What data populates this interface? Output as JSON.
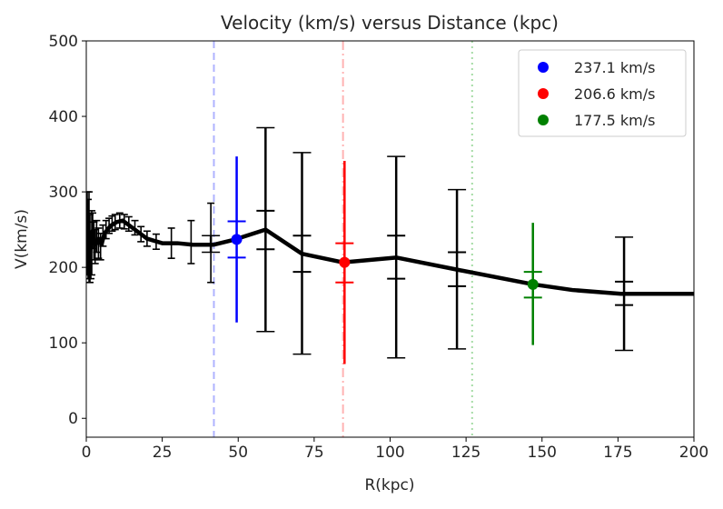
{
  "chart_data": {
    "type": "line",
    "title": "Velocity (km/s) versus Distance (kpc)",
    "xlabel": "R(kpc)",
    "ylabel": "V(km/s)",
    "xlim": [
      0,
      200
    ],
    "ylim": [
      -25,
      500
    ],
    "xticks": [
      0,
      25,
      50,
      75,
      100,
      125,
      150,
      175,
      200
    ],
    "yticks": [
      0,
      100,
      200,
      300,
      400,
      500
    ],
    "grid": false,
    "legend_position": "top-right",
    "rotation_curve": {
      "color": "#000000",
      "x": [
        1,
        2,
        3,
        4,
        5,
        6,
        8,
        10,
        12,
        15,
        20,
        25,
        30,
        35,
        42,
        49,
        59,
        71,
        84.5,
        102,
        122,
        147,
        160,
        176,
        200
      ],
      "y": [
        210,
        248,
        230,
        238,
        230,
        245,
        255,
        260,
        262,
        253,
        238,
        232,
        232,
        230,
        230,
        237,
        250,
        218,
        206.6,
        213,
        197,
        177.5,
        170,
        165,
        165
      ]
    },
    "small_error_bars": {
      "color": "#000000",
      "points": [
        {
          "x": 0.3,
          "y": 240,
          "lo": 190,
          "hi": 300
        },
        {
          "x": 0.6,
          "y": 230,
          "lo": 185,
          "hi": 290
        },
        {
          "x": 0.9,
          "y": 225,
          "lo": 180,
          "hi": 300
        },
        {
          "x": 1.2,
          "y": 210,
          "lo": 180,
          "hi": 270
        },
        {
          "x": 1.5,
          "y": 215,
          "lo": 185,
          "hi": 245
        },
        {
          "x": 1.8,
          "y": 225,
          "lo": 190,
          "hi": 275
        },
        {
          "x": 2.1,
          "y": 248,
          "lo": 225,
          "hi": 272
        },
        {
          "x": 2.5,
          "y": 235,
          "lo": 210,
          "hi": 260
        },
        {
          "x": 2.9,
          "y": 228,
          "lo": 205,
          "hi": 250
        },
        {
          "x": 3.4,
          "y": 240,
          "lo": 220,
          "hi": 262
        },
        {
          "x": 4.0,
          "y": 232,
          "lo": 212,
          "hi": 252
        },
        {
          "x": 4.7,
          "y": 228,
          "lo": 210,
          "hi": 245
        },
        {
          "x": 5.5,
          "y": 242,
          "lo": 228,
          "hi": 256
        },
        {
          "x": 6.5,
          "y": 250,
          "lo": 238,
          "hi": 262
        },
        {
          "x": 7.5,
          "y": 255,
          "lo": 245,
          "hi": 265
        },
        {
          "x": 8.5,
          "y": 258,
          "lo": 248,
          "hi": 268
        },
        {
          "x": 9.5,
          "y": 260,
          "lo": 250,
          "hi": 270
        },
        {
          "x": 11,
          "y": 262,
          "lo": 252,
          "hi": 272
        },
        {
          "x": 12.5,
          "y": 261,
          "lo": 251,
          "hi": 270
        },
        {
          "x": 14,
          "y": 258,
          "lo": 248,
          "hi": 267
        },
        {
          "x": 16,
          "y": 252,
          "lo": 243,
          "hi": 262
        },
        {
          "x": 18,
          "y": 244,
          "lo": 234,
          "hi": 254
        },
        {
          "x": 20,
          "y": 238,
          "lo": 228,
          "hi": 248
        },
        {
          "x": 23,
          "y": 234,
          "lo": 224,
          "hi": 244
        },
        {
          "x": 28,
          "y": 232,
          "lo": 212,
          "hi": 252
        },
        {
          "x": 34.5,
          "y": 233,
          "lo": 205,
          "hi": 262
        },
        {
          "x": 41,
          "y": 230,
          "lo": 180,
          "hi": 285
        }
      ]
    },
    "large_error_bars": [
      {
        "x": 41,
        "y": 230,
        "lo": 220,
        "hi": 242,
        "color": "#000000",
        "marker": false
      },
      {
        "x": 59,
        "y": 250,
        "lo": 115,
        "hi": 385,
        "inner_lo": 224,
        "inner_hi": 275,
        "color": "#000000",
        "marker": false
      },
      {
        "x": 71,
        "y": 218,
        "lo": 85,
        "hi": 352,
        "inner_lo": 194,
        "inner_hi": 242,
        "color": "#000000",
        "marker": false
      },
      {
        "x": 102,
        "y": 213,
        "lo": 80,
        "hi": 347,
        "inner_lo": 185,
        "inner_hi": 242,
        "color": "#000000",
        "marker": false
      },
      {
        "x": 122,
        "y": 197,
        "lo": 92,
        "hi": 303,
        "inner_lo": 175,
        "inner_hi": 220,
        "color": "#000000",
        "marker": false
      },
      {
        "x": 177,
        "y": 165,
        "lo": 90,
        "hi": 240,
        "inner_lo": 150,
        "inner_hi": 181,
        "color": "#000000",
        "marker": false
      }
    ],
    "highlighted_points": [
      {
        "name": "237.1 km/s",
        "color": "#0000ff",
        "x": 49.5,
        "y": 237.1,
        "lo": 127,
        "hi": 347,
        "inner_lo": 213,
        "inner_hi": 261
      },
      {
        "name": "206.6 km/s",
        "color": "#ff0000",
        "x": 85,
        "y": 206.6,
        "lo": 72,
        "hi": 341,
        "inner_lo": 180,
        "inner_hi": 232
      },
      {
        "name": "177.5 km/s",
        "color": "#008000",
        "x": 147,
        "y": 177.5,
        "lo": 97,
        "hi": 259,
        "inner_lo": 160,
        "inner_hi": 194
      }
    ],
    "vertical_lines": [
      {
        "x": 42,
        "color": "#b0b3ff",
        "style": "dashed"
      },
      {
        "x": 84.5,
        "color": "#ffb3b3",
        "style": "dashdot"
      },
      {
        "x": 127,
        "color": "#a6dca6",
        "style": "dotted"
      }
    ],
    "legend": [
      "237.1 km/s",
      "206.6 km/s",
      "177.5 km/s"
    ]
  }
}
